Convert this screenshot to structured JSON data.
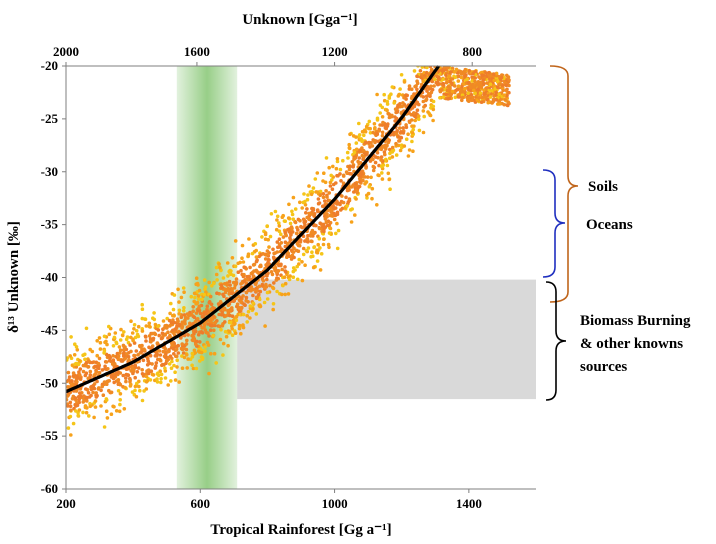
{
  "chart_data": {
    "type": "scatter",
    "title": "",
    "xlabel": "Tropical Rainforest [Gg a⁻¹]",
    "ylabel": "δ¹³ Unknown [‰]",
    "x2label": "Unknown [Gga⁻¹]",
    "xlim": [
      200,
      1600
    ],
    "ylim": [
      -60,
      -20
    ],
    "x_ticks": [
      200,
      600,
      1000,
      1400
    ],
    "y_ticks": [
      -60,
      -55,
      -50,
      -45,
      -40,
      -35,
      -30,
      -25,
      -20
    ],
    "x2_ticks": [
      {
        "label": "2000",
        "x": 200
      },
      {
        "label": "1600",
        "x": 590
      },
      {
        "label": "1200",
        "x": 1000
      },
      {
        "label": "800",
        "x": 1410
      }
    ],
    "fit_curve": {
      "color": "#000000",
      "points": [
        [
          200,
          -50.8
        ],
        [
          400,
          -48.0
        ],
        [
          600,
          -44.3
        ],
        [
          800,
          -39.3
        ],
        [
          1000,
          -32.6
        ],
        [
          1200,
          -24.9
        ],
        [
          1310,
          -20.0
        ]
      ]
    },
    "scatter": {
      "colors": [
        "#f5c518",
        "#f7a21b",
        "#f08a24",
        "#ee7d2a"
      ],
      "half_width": 2.6,
      "overshoot_x": 1520
    },
    "bands": [
      {
        "orientation": "vertical",
        "x_range": [
          530,
          710
        ],
        "color": "#8cc97a"
      },
      {
        "orientation": "horizontal",
        "y_range": [
          -51.5,
          -40.2
        ],
        "x_from": 710,
        "color": "#d9d9d9"
      }
    ],
    "annotations": [
      {
        "label": "Soils",
        "y_range": [
          -20,
          -41.5
        ],
        "bracket_color": "#c0651b"
      },
      {
        "label": "Oceans",
        "y_range": [
          -29.8,
          -40
        ],
        "bracket_color": "#1f2fbf"
      },
      {
        "label_lines": [
          "Biomass Burning",
          "& other knowns",
          "sources"
        ],
        "y_range": [
          -40.2,
          -51.5
        ],
        "bracket_color": "#000000"
      }
    ]
  }
}
